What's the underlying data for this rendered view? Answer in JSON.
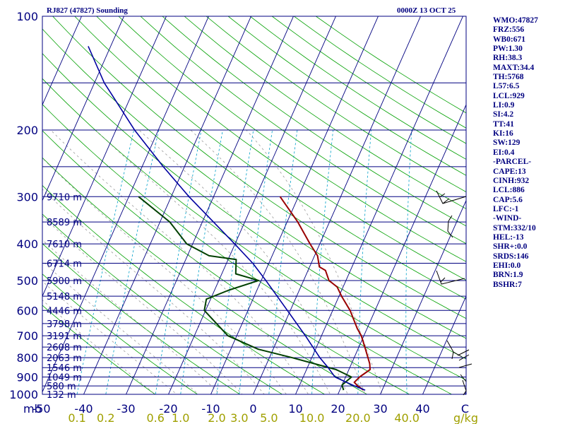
{
  "header": {
    "station": "RJ827 (47827) Sounding",
    "time": "0000Z 13 OCT 25"
  },
  "indices": [
    "WMO:47827",
    "FRZ:556",
    "WB0:671",
    "PW:1.30",
    "RH:38.3",
    "MAXT:34.4",
    "TH:5768",
    "L57:6.5",
    "LCL:929",
    "LI:0.9",
    "SI:4.2",
    "TT:41",
    "KI:16",
    "SW:129",
    "EI:0.4",
    "-PARCEL-",
    "CAPE:13",
    "CINH:932",
    "LCL:886",
    "CAP:5.6",
    "LFC:-1",
    "-WIND-",
    "STM:332/10",
    "HEL:-13",
    "SHR+:0.0",
    "SRDS:146",
    "EHI:0.0",
    "BRN:1.9",
    "BSHR:7"
  ],
  "colors": {
    "isobar": "#000080",
    "isotherm": "#000080",
    "dry_adiabat": "#00a000",
    "moist_adiabat": "#9a9a9a",
    "mixing_ratio": "#00a0c8",
    "temperature": "#990000",
    "dewpoint": "#004000",
    "virtual_temp": "#0000a0",
    "axis_text": "#000080",
    "mixing_text": "#a0a000",
    "wind": "#000000"
  },
  "chart_data": {
    "type": "line",
    "title": "RJ827 (47827) Sounding",
    "subtitle": "0000Z 13 OCT 25",
    "xlabel": "",
    "ylabel": "mb",
    "y_scale": "log-pressure",
    "ylim": [
      1000,
      100
    ],
    "xlim": [
      -50,
      50
    ],
    "pressure_ticks": [
      100,
      200,
      300,
      400,
      500,
      600,
      700,
      800,
      900,
      1000
    ],
    "temperature_ticks": [
      -50,
      -40,
      -30,
      -20,
      -10,
      0,
      10,
      20,
      30,
      40,
      50
    ],
    "temperature_tick_labels": [
      "-50",
      "-40",
      "-30",
      "-20",
      "-10",
      "0",
      "10",
      "20",
      "30",
      "40",
      "C"
    ],
    "mixing_ratio_ticks": [
      "0.1",
      "0.2",
      "0.6",
      "1.0",
      "2.0",
      "3.0",
      "5.0",
      "10.0",
      "20.0",
      "40.0"
    ],
    "mixing_ratio_unit": "g/kg",
    "height_labels": [
      {
        "p": 1000,
        "text": "132 m"
      },
      {
        "p": 950,
        "text": "580 m"
      },
      {
        "p": 900,
        "text": "1049 m"
      },
      {
        "p": 850,
        "text": "1546 m"
      },
      {
        "p": 800,
        "text": "2063 m"
      },
      {
        "p": 750,
        "text": "2608 m"
      },
      {
        "p": 700,
        "text": "3191 m"
      },
      {
        "p": 650,
        "text": "3798 m"
      },
      {
        "p": 600,
        "text": "4446 m"
      },
      {
        "p": 550,
        "text": "5148 m"
      },
      {
        "p": 500,
        "text": "5900 m"
      },
      {
        "p": 450,
        "text": "6714 m"
      },
      {
        "p": 400,
        "text": "7610 m"
      },
      {
        "p": 350,
        "text": "8589 m"
      },
      {
        "p": 300,
        "text": "9710 m"
      }
    ],
    "series": [
      {
        "key": "temperature",
        "points": [
          {
            "p": 975,
            "t": 25.6
          },
          {
            "p": 950,
            "t": 23.8
          },
          {
            "p": 930,
            "t": 22.6
          },
          {
            "p": 900,
            "t": 23.3
          },
          {
            "p": 860,
            "t": 25.0
          },
          {
            "p": 830,
            "t": 24.3
          },
          {
            "p": 760,
            "t": 21.8
          },
          {
            "p": 700,
            "t": 19.4
          },
          {
            "p": 670,
            "t": 17.7
          },
          {
            "p": 600,
            "t": 14.1
          },
          {
            "p": 550,
            "t": 10.6
          },
          {
            "p": 520,
            "t": 8.6
          },
          {
            "p": 500,
            "t": 6.0
          },
          {
            "p": 470,
            "t": 4.1
          },
          {
            "p": 460,
            "t": 2.3
          },
          {
            "p": 430,
            "t": 0.7
          },
          {
            "p": 400,
            "t": -2.3
          },
          {
            "p": 350,
            "t": -7.5
          },
          {
            "p": 300,
            "t": -14.3
          }
        ]
      },
      {
        "key": "dewpoint",
        "points": [
          {
            "p": 975,
            "t": 20.9
          },
          {
            "p": 945,
            "t": 20.0
          },
          {
            "p": 900,
            "t": 21.4
          },
          {
            "p": 860,
            "t": 17.0
          },
          {
            "p": 800,
            "t": 5.4
          },
          {
            "p": 760,
            "t": -3.5
          },
          {
            "p": 700,
            "t": -12.1
          },
          {
            "p": 600,
            "t": -20.3
          },
          {
            "p": 560,
            "t": -21.0
          },
          {
            "p": 530,
            "t": -16.6
          },
          {
            "p": 500,
            "t": -10.6
          },
          {
            "p": 480,
            "t": -16.7
          },
          {
            "p": 440,
            "t": -18.1
          },
          {
            "p": 430,
            "t": -24.9
          },
          {
            "p": 400,
            "t": -31.4
          },
          {
            "p": 350,
            "t": -37.7
          },
          {
            "p": 300,
            "t": -47.7
          }
        ]
      },
      {
        "key": "virtual_temp",
        "points": [
          {
            "p": 975,
            "t": 26.0
          },
          {
            "p": 950,
            "t": 23.0
          },
          {
            "p": 900,
            "t": 17.5
          },
          {
            "p": 850,
            "t": 14.9
          },
          {
            "p": 800,
            "t": 11.9
          },
          {
            "p": 700,
            "t": 6.2
          },
          {
            "p": 600,
            "t": -0.7
          },
          {
            "p": 500,
            "t": -8.9
          },
          {
            "p": 450,
            "t": -13.8
          },
          {
            "p": 400,
            "t": -20.1
          },
          {
            "p": 300,
            "t": -35.8
          },
          {
            "p": 250,
            "t": -45.0
          },
          {
            "p": 200,
            "t": -55.6
          },
          {
            "p": 150,
            "t": -67.7
          },
          {
            "p": 120,
            "t": -75.3
          }
        ]
      }
    ]
  }
}
